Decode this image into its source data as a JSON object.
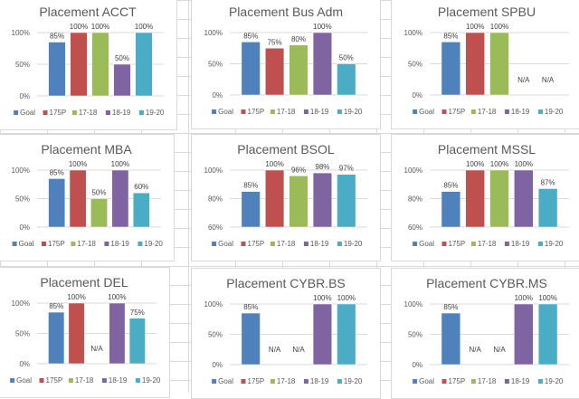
{
  "colors": {
    "Goal": "#4F81BD",
    "175P": "#C0504D",
    "17-18": "#9BBB59",
    "18-19": "#8064A2",
    "19-20": "#4BACC6"
  },
  "chart_data": [
    {
      "type": "bar",
      "title": "Placement ACCT",
      "categories": [
        "Goal",
        "175P",
        "17-18",
        "18-19",
        "19-20"
      ],
      "values": [
        85,
        100,
        100,
        50,
        100
      ],
      "labels": [
        "85%",
        "100%",
        "100%",
        "50%",
        "100%"
      ],
      "yticks": [
        "0%",
        "50%",
        "100%"
      ],
      "ylim": [
        0,
        100
      ],
      "xlabel": "",
      "ylabel": "",
      "grid": true,
      "legend": "bottom"
    },
    {
      "type": "bar",
      "title": "Placement Bus Adm",
      "categories": [
        "Goal",
        "175P",
        "17-18",
        "18-19",
        "19-20"
      ],
      "values": [
        85,
        75,
        80,
        100,
        50
      ],
      "labels": [
        "85%",
        "75%",
        "80%",
        "100%",
        "50%"
      ],
      "yticks": [
        "0%",
        "50%",
        "100%"
      ],
      "ylim": [
        0,
        100
      ],
      "xlabel": "",
      "ylabel": "",
      "grid": true,
      "legend": "bottom"
    },
    {
      "type": "bar",
      "title": "Placement SPBU",
      "categories": [
        "Goal",
        "175P",
        "17-18",
        "18-19",
        "19-20"
      ],
      "values": [
        85,
        100,
        100,
        null,
        null
      ],
      "labels": [
        "85%",
        "100%",
        "100%",
        "N/A",
        "N/A"
      ],
      "yticks": [
        "0%",
        "50%",
        "100%"
      ],
      "ylim": [
        0,
        100
      ],
      "xlabel": "",
      "ylabel": "",
      "grid": true,
      "legend": "bottom"
    },
    {
      "type": "bar",
      "title": "Placement MBA",
      "categories": [
        "Goal",
        "175P",
        "17-18",
        "18-19",
        "19-20"
      ],
      "values": [
        85,
        100,
        50,
        100,
        60
      ],
      "labels": [
        "85%",
        "100%",
        "50%",
        "100%",
        "60%"
      ],
      "yticks": [
        "0%",
        "50%",
        "100%"
      ],
      "ylim": [
        0,
        100
      ],
      "xlabel": "",
      "ylabel": "",
      "grid": true,
      "legend": "bottom"
    },
    {
      "type": "bar",
      "title": "Placement BSOL",
      "categories": [
        "Goal",
        "175P",
        "17-18",
        "18-19",
        "19-20"
      ],
      "values": [
        85,
        100,
        96,
        98,
        97
      ],
      "labels": [
        "85%",
        "100%",
        "96%",
        "98%",
        "97%"
      ],
      "yticks": [
        "60%",
        "80%",
        "100%"
      ],
      "ylim": [
        60,
        100
      ],
      "xlabel": "",
      "ylabel": "",
      "grid": true,
      "legend": "bottom"
    },
    {
      "type": "bar",
      "title": "Placement MSSL",
      "categories": [
        "Goal",
        "175P",
        "17-18",
        "18-19",
        "19-20"
      ],
      "values": [
        85,
        100,
        100,
        100,
        87
      ],
      "labels": [
        "85%",
        "100%",
        "100%",
        "100%",
        "87%"
      ],
      "yticks": [
        "60%",
        "80%",
        "100%"
      ],
      "ylim": [
        60,
        100
      ],
      "xlabel": "",
      "ylabel": "",
      "grid": true,
      "legend": "bottom"
    },
    {
      "type": "bar",
      "title": "Placement DEL",
      "categories": [
        "Goal",
        "175P",
        "17-18",
        "18-19",
        "19-20"
      ],
      "values": [
        85,
        100,
        null,
        100,
        75
      ],
      "labels": [
        "85%",
        "100%",
        "N/A",
        "100%",
        "75%"
      ],
      "yticks": [
        "0%",
        "50%",
        "100%"
      ],
      "ylim": [
        0,
        100
      ],
      "xlabel": "",
      "ylabel": "",
      "grid": true,
      "legend": "bottom"
    },
    {
      "type": "bar",
      "title": "Placement CYBR.BS",
      "categories": [
        "Goal",
        "175P",
        "17-18",
        "18-19",
        "19-20"
      ],
      "values": [
        85,
        null,
        null,
        100,
        100
      ],
      "labels": [
        "85%",
        "N/A",
        "N/A",
        "100%",
        "100%"
      ],
      "yticks": [
        "0%",
        "50%",
        "100%"
      ],
      "ylim": [
        0,
        100
      ],
      "xlabel": "",
      "ylabel": "",
      "grid": true,
      "legend": "bottom"
    },
    {
      "type": "bar",
      "title": "Placement CYBR.MS",
      "categories": [
        "Goal",
        "175P",
        "17-18",
        "18-19",
        "19-20"
      ],
      "values": [
        85,
        null,
        null,
        100,
        100
      ],
      "labels": [
        "85%",
        "N/A",
        "N/A",
        "100%",
        "100%"
      ],
      "yticks": [
        "0%",
        "50%",
        "100%"
      ],
      "ylim": [
        0,
        100
      ],
      "xlabel": "",
      "ylabel": "",
      "grid": true,
      "legend": "bottom"
    }
  ]
}
